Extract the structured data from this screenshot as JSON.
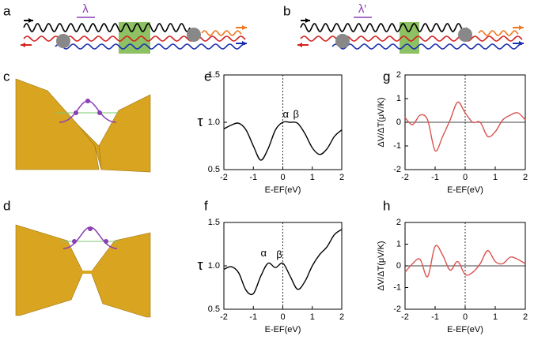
{
  "panel_labels": [
    "a",
    "b",
    "c",
    "d",
    "e",
    "f",
    "g",
    "h"
  ],
  "diagram_labels": [
    "λ",
    "λ′"
  ],
  "chart_data": [
    {
      "type": "line",
      "xlabel": "E-EF(eV)",
      "ylabel": "τ",
      "x": [
        -2,
        -1.75,
        -1.5,
        -1.25,
        -1,
        -0.75,
        -0.5,
        -0.25,
        0,
        0.25,
        0.5,
        0.75,
        1,
        1.25,
        1.5,
        1.75,
        2
      ],
      "series": [
        {
          "color": "#000000",
          "values": [
            0.93,
            0.97,
            0.99,
            0.92,
            0.75,
            0.6,
            0.72,
            0.92,
            1.0,
            1.0,
            0.99,
            0.88,
            0.73,
            0.66,
            0.72,
            0.85,
            0.92
          ]
        }
      ],
      "xlim": [
        -2,
        2
      ],
      "ylim": [
        0.5,
        1.5
      ],
      "xticks": [
        -2,
        -1,
        0,
        1,
        2
      ],
      "yticks": [
        0.5,
        {
          "value": 1,
          "label": "1.0"
        },
        1.5
      ],
      "vlines": [
        0
      ],
      "annotations": [
        "α",
        "β"
      ]
    },
    {
      "type": "line",
      "xlabel": "E-EF(eV)",
      "ylabel": "τ",
      "x": [
        -2,
        -1.75,
        -1.5,
        -1.25,
        -1,
        -0.75,
        -0.5,
        -0.25,
        0,
        0.25,
        0.5,
        0.75,
        1,
        1.25,
        1.5,
        1.75,
        2
      ],
      "series": [
        {
          "color": "#000000",
          "values": [
            0.96,
            0.99,
            0.92,
            0.72,
            0.68,
            0.88,
            1.03,
            0.98,
            1.03,
            0.88,
            0.73,
            0.82,
            1.0,
            1.13,
            1.22,
            1.36,
            1.42
          ]
        }
      ],
      "xlim": [
        -2,
        2
      ],
      "ylim": [
        0.5,
        1.5
      ],
      "xticks": [
        -2,
        -1,
        0,
        1,
        2
      ],
      "yticks": [
        0.5,
        {
          "value": 1,
          "label": "1.0"
        },
        1.5
      ],
      "vlines": [
        0
      ],
      "annotations": [
        "α",
        "β"
      ]
    },
    {
      "type": "line",
      "xlabel": "E-EF(eV)",
      "ylabel": "ΔV/ΔT(μV/K)",
      "x": [
        -2,
        -1.75,
        -1.5,
        -1.25,
        -1,
        -0.75,
        -0.5,
        -0.25,
        0,
        0.25,
        0.5,
        0.75,
        1,
        1.25,
        1.5,
        1.75,
        2
      ],
      "series": [
        {
          "color": "#d9534f",
          "values": [
            0.2,
            -0.1,
            0.3,
            0.1,
            -1.2,
            -0.6,
            0.1,
            0.85,
            0.4,
            0.0,
            0.0,
            -0.6,
            -0.4,
            0.1,
            0.3,
            0.4,
            0.1
          ]
        }
      ],
      "xlim": [
        -2,
        2
      ],
      "ylim": [
        -2,
        2
      ],
      "xticks": [
        -2,
        -1,
        0,
        1,
        2
      ],
      "yticks": [
        -2,
        -1,
        0,
        1,
        2
      ],
      "vlines": [
        0
      ],
      "hlines": [
        0
      ]
    },
    {
      "type": "line",
      "xlabel": "E-EF(eV)",
      "ylabel": "ΔV/ΔT(μV/K)",
      "x": [
        -2,
        -1.75,
        -1.5,
        -1.25,
        -1,
        -0.75,
        -0.5,
        -0.25,
        0,
        0.25,
        0.5,
        0.75,
        1,
        1.25,
        1.5,
        1.75,
        2
      ],
      "series": [
        {
          "color": "#d9534f",
          "values": [
            -0.3,
            0.1,
            0.3,
            -0.5,
            0.9,
            0.5,
            -0.2,
            0.2,
            -0.4,
            -0.3,
            0.1,
            0.7,
            0.2,
            0.1,
            0.4,
            0.3,
            0.1
          ]
        }
      ],
      "xlim": [
        -2,
        2
      ],
      "ylim": [
        -2,
        2
      ],
      "xticks": [
        -2,
        -1,
        0,
        1,
        2
      ],
      "yticks": [
        -2,
        -1,
        0,
        1,
        2
      ],
      "vlines": [
        0
      ],
      "hlines": [
        0
      ]
    }
  ]
}
